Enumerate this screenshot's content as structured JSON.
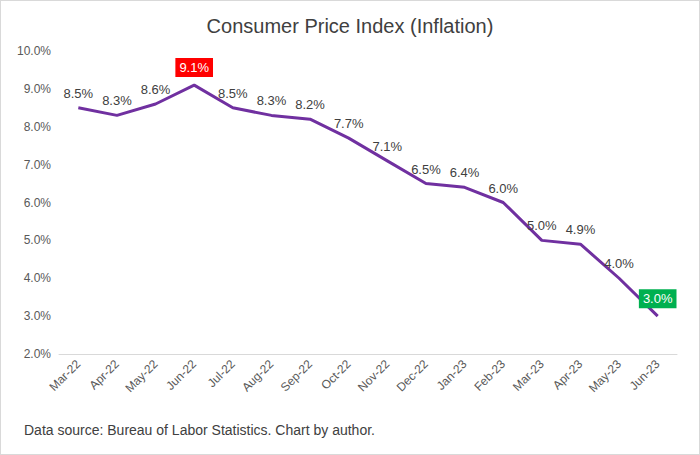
{
  "chart_data": {
    "type": "line",
    "title": "Consumer Price Index (Inflation)",
    "caption": "Data source: Bureau of Labor Statistics. Chart by author.",
    "categories": [
      "Mar-22",
      "Apr-22",
      "May-22",
      "Jun-22",
      "Jul-22",
      "Aug-22",
      "Sep-22",
      "Oct-22",
      "Nov-22",
      "Dec-22",
      "Jan-23",
      "Feb-23",
      "Mar-23",
      "Apr-23",
      "May-23",
      "Jun-23"
    ],
    "values": [
      8.5,
      8.3,
      8.6,
      9.1,
      8.5,
      8.3,
      8.2,
      7.7,
      7.1,
      6.5,
      6.4,
      6.0,
      5.0,
      4.9,
      4.0,
      3.0
    ],
    "value_labels": [
      "8.5%",
      "8.3%",
      "8.6%",
      "9.1%",
      "8.5%",
      "8.3%",
      "8.2%",
      "7.7%",
      "7.1%",
      "6.5%",
      "6.4%",
      "6.0%",
      "5.0%",
      "4.9%",
      "4.0%",
      "3.0%"
    ],
    "color": "#7030a0",
    "ylim": [
      2,
      10
    ],
    "yticks": [
      {
        "value": 2,
        "label": "2.0%"
      },
      {
        "value": 3,
        "label": "3.0%"
      },
      {
        "value": 4,
        "label": "4.0%"
      },
      {
        "value": 5,
        "label": "5.0%"
      },
      {
        "value": 6,
        "label": "6.0%"
      },
      {
        "value": 7,
        "label": "7.0%"
      },
      {
        "value": 8,
        "label": "8.0%"
      },
      {
        "value": 9,
        "label": "9.0%"
      },
      {
        "value": 10,
        "label": "10.0%"
      }
    ],
    "grid": false,
    "data_labels": true
  }
}
